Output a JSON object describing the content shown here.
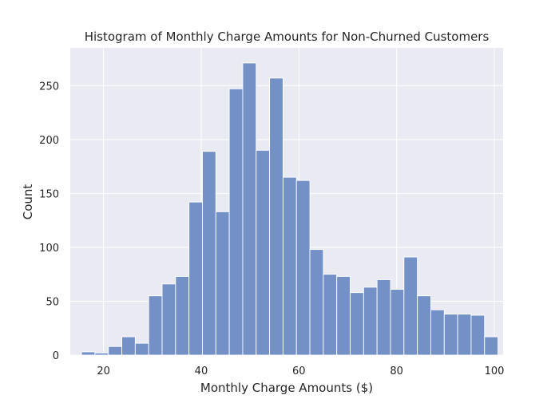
{
  "chart_data": {
    "type": "bar",
    "title": "Histogram of Monthly Charge Amounts for Non-Churned Customers",
    "xlabel": "Monthly Charge Amounts ($)",
    "ylabel": "Count",
    "xlim": [
      13.2,
      101.8
    ],
    "ylim": [
      0,
      285
    ],
    "xticks": [
      20,
      40,
      60,
      80,
      100
    ],
    "yticks": [
      0,
      50,
      100,
      150,
      200,
      250
    ],
    "grid": true,
    "bin_width": 2.75,
    "bin_start": 15.5,
    "values": [
      3,
      2,
      8,
      17,
      11,
      55,
      66,
      73,
      142,
      189,
      133,
      247,
      271,
      190,
      257,
      165,
      162,
      98,
      75,
      73,
      58,
      63,
      70,
      61,
      91,
      55,
      42,
      38,
      38,
      37,
      17
    ],
    "colors": {
      "bar": "#7391c7",
      "bar_edge": "#ffffff",
      "plot_bg": "#eaeaf2",
      "grid": "#ffffff",
      "text": "#262626"
    }
  }
}
